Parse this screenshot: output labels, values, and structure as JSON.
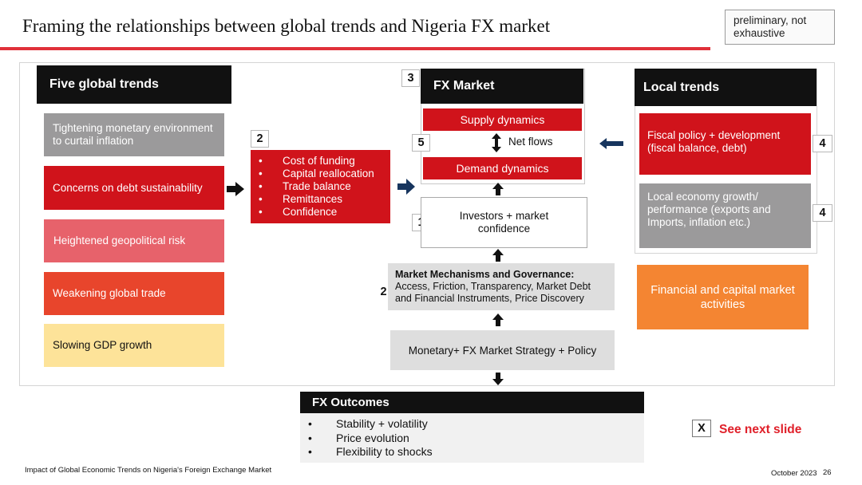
{
  "slide": {
    "title": "Framing the relationships between global trends and Nigeria FX market",
    "note": "preliminary, not exhaustive"
  },
  "global_trends": {
    "header": "Five global trends",
    "items": [
      {
        "label": "Tightening monetary environment to curtail inflation"
      },
      {
        "label": "Concerns on debt sustainability"
      },
      {
        "label": "Heightened geopolitical risk"
      },
      {
        "label": "Weakening global trade"
      },
      {
        "label": "Slowing GDP growth"
      }
    ]
  },
  "channels": {
    "number": "2",
    "items": [
      "Cost of funding",
      "Capital reallocation",
      "Trade balance",
      "Remittances",
      "Confidence"
    ]
  },
  "fx_market": {
    "number": "3",
    "header": "FX Market",
    "supply": "Supply dynamics",
    "net_flows_number": "5",
    "net_flows": "Net flows",
    "demand": "Demand dynamics",
    "investors_number": "1",
    "investors": "Investors + market confidence",
    "mechanisms_number": "2",
    "mechanisms_bold": "Market Mechanisms and Governance:",
    "mechanisms_rest": " Access, Friction, Transparency, Market Debt and Financial Instruments, Price Discovery",
    "policy": "Monetary+ FX Market Strategy + Policy"
  },
  "local_trends": {
    "header": "Local trends",
    "fiscal": "Fiscal policy + development (fiscal balance, debt)",
    "fiscal_number": "4",
    "economy": "Local economy growth/ performance (exports and Imports, inflation etc.)",
    "economy_number": "4",
    "financial": "Financial and capital market activities"
  },
  "outcomes": {
    "header": "FX Outcomes",
    "items": [
      "Stability + volatility",
      "Price evolution",
      "Flexibility to shocks"
    ]
  },
  "next": {
    "mark": "X",
    "label": "See next slide"
  },
  "footer": {
    "source": "Impact of Global Economic Trends on Nigeria's Foreign Exchange Market",
    "date": "October 2023",
    "page": "26"
  },
  "colors": {
    "accent_red": "#d0131b",
    "coral": "#e8452c",
    "pink": "#e7626b",
    "gray": "#9b9a9b",
    "yellow": "#fde399",
    "orange": "#f48532",
    "navy_arrow": "#17355e"
  }
}
